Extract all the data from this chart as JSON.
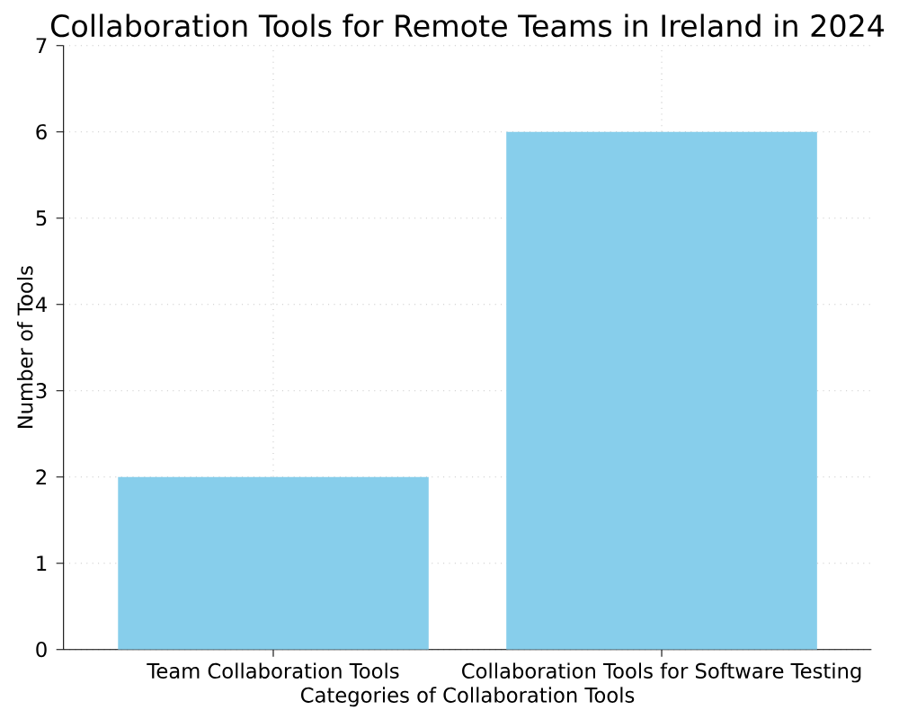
{
  "chart_data": {
    "type": "bar",
    "title": "Collaboration Tools for Remote Teams in Ireland in 2024",
    "xlabel": "Categories of Collaboration Tools",
    "ylabel": "Number of Tools",
    "categories": [
      "Team Collaboration Tools",
      "Collaboration Tools for Software Testing"
    ],
    "values": [
      2,
      6
    ],
    "color": "#87ceeb",
    "ylim": [
      0,
      7
    ],
    "yticks": [
      0,
      1,
      2,
      3,
      4,
      5,
      6,
      7
    ],
    "grid": true
  }
}
